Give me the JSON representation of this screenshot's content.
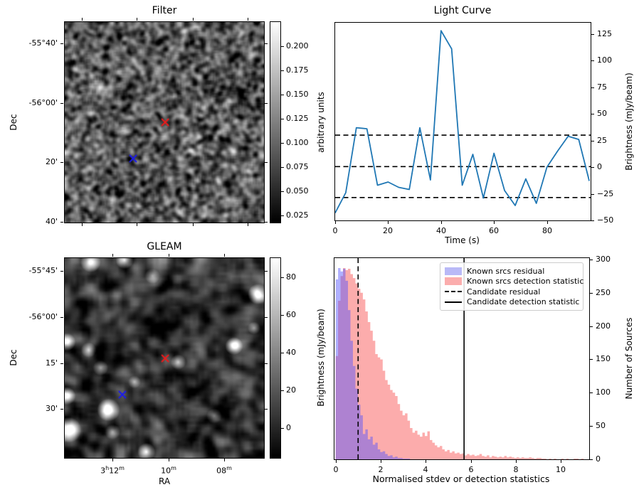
{
  "figure": {
    "background": "#ffffff"
  },
  "colors": {
    "line": "#1f77b4",
    "marker_red": "#ee1a1a",
    "marker_blue": "#1a1aee",
    "hist_blue_fill": "rgba(80,80,255,0.45)",
    "hist_pink_fill": "rgba(250,90,90,0.50)",
    "legend_blue_patch": "#b9b9f7",
    "legend_pink_patch": "#fbadad",
    "axis": "#000000"
  },
  "chart_data": [
    {
      "id": "filter",
      "type": "heatmap",
      "title": "Filter",
      "xlabel": "",
      "ylabel": "Dec",
      "ytick_labels": [
        "-55°40'",
        "-56°00'",
        "20'",
        "40'"
      ],
      "xtick_labels": [],
      "image_description": "fine grayscale speckle noise field",
      "colorbar": {
        "label": "arbitrary units",
        "ticks": [
          0.2,
          0.175,
          0.15,
          0.125,
          0.1,
          0.075,
          0.05,
          0.025
        ],
        "vmin": 0.018,
        "vmax": 0.225
      },
      "markers": [
        {
          "shape": "x",
          "color_ref": "marker_red",
          "fx": 0.504,
          "fy": 0.5
        },
        {
          "shape": "x",
          "color_ref": "marker_blue",
          "fx": 0.343,
          "fy": 0.681
        }
      ]
    },
    {
      "id": "light_curve",
      "type": "line",
      "title": "Light Curve",
      "xlabel": "Time (s)",
      "ylabel": "Brightness (mJy/beam)",
      "x": [
        0,
        4,
        8,
        12,
        16,
        20,
        24,
        28,
        32,
        36,
        40,
        44,
        48,
        52,
        56,
        60,
        64,
        68,
        72,
        76,
        80,
        84,
        88,
        92,
        96
      ],
      "y": [
        -43,
        -24,
        37,
        36,
        -17,
        -14,
        -19,
        -21,
        37,
        -12,
        128,
        111,
        -17,
        12,
        -29,
        13,
        -22,
        -36,
        -11,
        -34,
        0,
        15,
        29,
        26,
        -13
      ],
      "xticks": [
        0,
        20,
        40,
        60,
        80
      ],
      "yticks": [
        -50,
        -25,
        0,
        25,
        50,
        75,
        100,
        125
      ],
      "xlim": [
        0,
        96.5
      ],
      "ylim": [
        -50,
        135.5
      ],
      "dashed_hlines": [
        30,
        0.5,
        -28.5
      ],
      "grid": false,
      "legend_position": "none"
    },
    {
      "id": "gleam",
      "type": "heatmap",
      "title": "GLEAM",
      "xlabel": "RA",
      "ylabel": "Dec",
      "ytick_labels": [
        "-55°45'",
        "-56°00'",
        "15'",
        "30'"
      ],
      "xtick_labels": [
        "3^h12^m",
        "10^m",
        "08^m"
      ],
      "image_description": "smooth grayscale sky map with bright point sources",
      "colorbar": {
        "label": "Brightness (mJy/beam)",
        "ticks": [
          80,
          60,
          40,
          20,
          0
        ],
        "vmin": -16,
        "vmax": 90
      },
      "bright_sources": [
        [
          0.13,
          0.02,
          1.0,
          8
        ],
        [
          0.3,
          0.01,
          0.9,
          7
        ],
        [
          0.44,
          0.09,
          0.5,
          6
        ],
        [
          0.97,
          0.18,
          1.0,
          8
        ],
        [
          0.01,
          0.42,
          0.9,
          7
        ],
        [
          0.12,
          0.46,
          0.55,
          6
        ],
        [
          0.85,
          0.44,
          0.95,
          7
        ],
        [
          0.18,
          0.55,
          0.5,
          6
        ],
        [
          0.57,
          0.52,
          0.6,
          6
        ],
        [
          0.35,
          0.62,
          0.45,
          5
        ],
        [
          0.22,
          0.76,
          1.0,
          9
        ],
        [
          0.01,
          0.69,
          0.85,
          7
        ],
        [
          0.02,
          0.86,
          1.0,
          10
        ],
        [
          0.24,
          0.87,
          0.5,
          6
        ],
        [
          0.41,
          0.97,
          0.85,
          7
        ],
        [
          0.75,
          0.79,
          0.4,
          6
        ],
        [
          0.95,
          0.35,
          0.45,
          5
        ]
      ],
      "markers": [
        {
          "shape": "x",
          "color_ref": "marker_red",
          "fx": 0.504,
          "fy": 0.502
        },
        {
          "shape": "x",
          "color_ref": "marker_blue",
          "fx": 0.289,
          "fy": 0.683
        }
      ]
    },
    {
      "id": "histogram",
      "type": "bar",
      "xlabel": "Normalised stdev or detection statistics",
      "ylabel": "Number of Sources",
      "bin_start": 0,
      "bin_width": 0.11,
      "series": [
        {
          "name": "Known srcs residual",
          "color_ref": "hist_blue_fill",
          "legend_patch_ref": "legend_blue_patch",
          "counts": [
            270,
            287,
            282,
            286,
            268,
            224,
            178,
            140,
            106,
            82,
            66,
            38,
            45,
            30,
            34,
            22,
            25,
            15,
            11,
            12,
            8,
            5,
            6,
            3,
            4,
            2,
            2,
            1,
            1,
            1
          ]
        },
        {
          "name": "Known srcs detection statistic",
          "color_ref": "hist_pink_fill",
          "legend_patch_ref": "legend_pink_patch",
          "counts": [
            155,
            238,
            275,
            287,
            284,
            286,
            278,
            272,
            264,
            256,
            250,
            240,
            222,
            206,
            193,
            178,
            158,
            153,
            150,
            133,
            119,
            112,
            104,
            100,
            95,
            83,
            73,
            66,
            69,
            58,
            47,
            40,
            43,
            37,
            34,
            40,
            35,
            42,
            29,
            25,
            21,
            18,
            20,
            15,
            12,
            14,
            10,
            12,
            9,
            10,
            8,
            9,
            6,
            8,
            6,
            7,
            5,
            6,
            8,
            5,
            4,
            6,
            3,
            5,
            4,
            3,
            4,
            3,
            5,
            3,
            4,
            3,
            2,
            3,
            2,
            3,
            2,
            2,
            3,
            2,
            1,
            2,
            2,
            1,
            1,
            0,
            1,
            0,
            1,
            0,
            0,
            1,
            0,
            1,
            0,
            0,
            1,
            1,
            0,
            1
          ]
        }
      ],
      "vlines": [
        {
          "name": "Candidate residual",
          "x": 1.0,
          "style": "dashed"
        },
        {
          "name": "Candidate detection statistic",
          "x": 5.7,
          "style": "solid"
        }
      ],
      "xticks": [
        0,
        2,
        4,
        6,
        8,
        10
      ],
      "yticks": [
        0,
        50,
        100,
        150,
        200,
        250,
        300
      ],
      "xlim": [
        -0.05,
        11.25
      ],
      "ylim": [
        0,
        302
      ],
      "legend_position": "upper right"
    }
  ]
}
